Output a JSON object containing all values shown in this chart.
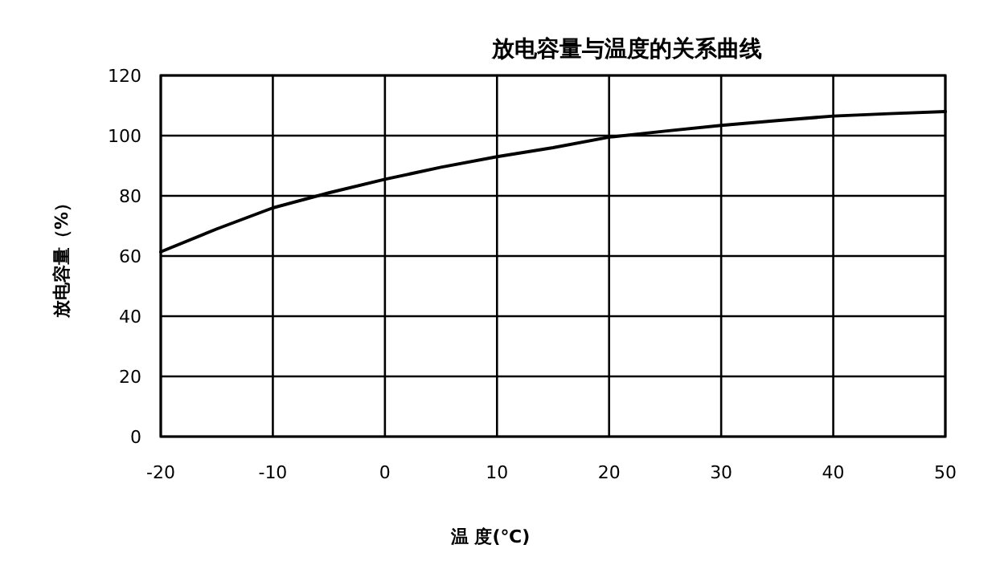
{
  "chart_data": {
    "type": "line",
    "title": "放电容量与温度的关系曲线",
    "xlabel": "温 度(℃)",
    "ylabel": "放电容量（%）",
    "x": [
      -20,
      -15,
      -10,
      -5,
      0,
      5,
      10,
      15,
      20,
      25,
      30,
      35,
      40,
      45,
      50
    ],
    "series": [
      {
        "color": "#000000",
        "values": [
          61.4,
          69,
          76,
          81,
          85.5,
          89.5,
          93,
          96,
          99.5,
          101.5,
          103.4,
          105,
          106.5,
          107.3,
          108
        ]
      }
    ],
    "xlim": [
      -20,
      50
    ],
    "ylim": [
      0,
      120
    ],
    "xticks": [
      -20,
      -10,
      0,
      10,
      20,
      30,
      40,
      50
    ],
    "yticks": [
      0,
      20,
      40,
      60,
      80,
      100,
      120
    ],
    "grid": true,
    "marker": "none",
    "line_style": "solid"
  }
}
